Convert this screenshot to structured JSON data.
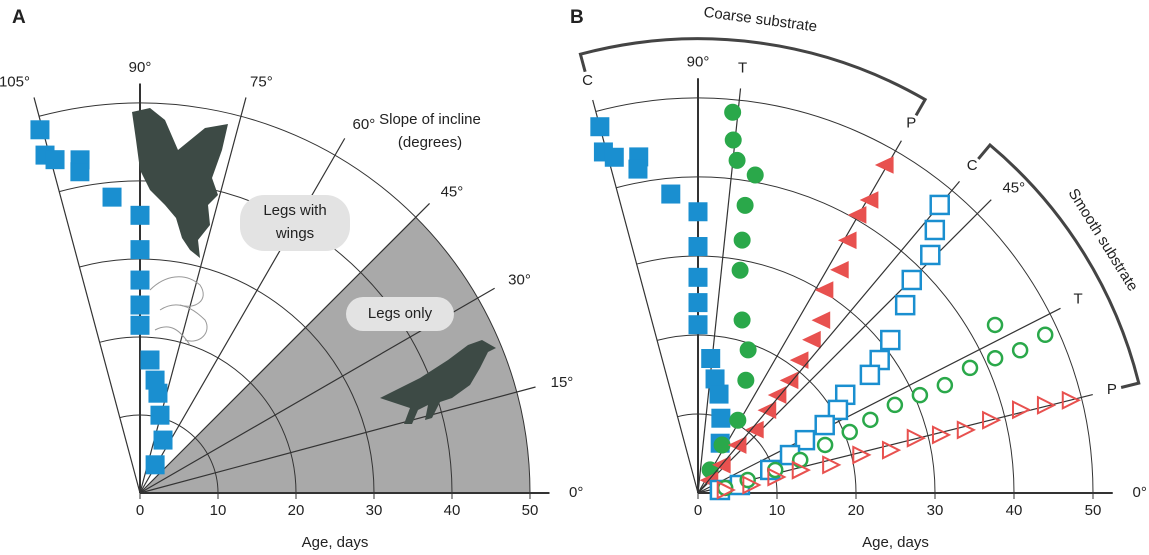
{
  "chart_data": [
    {
      "type": "polar",
      "title": "A",
      "x_label": "Age, days",
      "rlim": [
        0,
        50
      ],
      "rticks": [
        0,
        10,
        20,
        30,
        40,
        50
      ],
      "thetaticks": [
        {
          "value": 0,
          "label": "0°"
        },
        {
          "value": 15,
          "label": "15°"
        },
        {
          "value": 30,
          "label": "30°"
        },
        {
          "value": 45,
          "label": "45°"
        },
        {
          "value": 60,
          "label": "60°"
        },
        {
          "value": 75,
          "label": "75°"
        },
        {
          "value": 90,
          "label": "90°"
        },
        {
          "value": 105,
          "label": "105°"
        }
      ],
      "shaded_theta": [
        0,
        45
      ],
      "shade_color": "#a9a9a9",
      "annotations": {
        "slope_label": [
          "Slope of incline",
          "(degrees)"
        ],
        "legs_with_wings": [
          "Legs with",
          "wings"
        ],
        "legs_only": "Legs only"
      },
      "series": [
        {
          "marker": "square",
          "filled": true,
          "color": "#1a8fd0",
          "x": [
            48.3,
            45.0,
            44.1,
            43.4,
            41.9,
            38.1,
            35.6,
            31.2,
            27.3,
            24.1,
            21.5,
            17.1,
            14.6,
            13.0,
            10.3,
            7.4,
            4.1
          ],
          "values": [
            105.4,
            105.7,
            104.3,
            100.2,
            100.6,
            95.4,
            90,
            90,
            90,
            90,
            90,
            85.7,
            82.4,
            79.8,
            75.6,
            66.5,
            61.8
          ]
        }
      ]
    },
    {
      "type": "polar",
      "title": "B",
      "x_label": "Age, days",
      "rlim": [
        0,
        50
      ],
      "rticks": [
        0,
        10,
        20,
        30,
        40,
        50
      ],
      "thetaticks": [
        {
          "value": 0,
          "label": "0°"
        },
        {
          "value": 45,
          "label": "45°"
        },
        {
          "value": 90,
          "label": "90°"
        }
      ],
      "groups": [
        {
          "name": "Coarse substrate",
          "series": [
            {
              "name": "C",
              "angle": 105,
              "marker": "square",
              "filled": true,
              "color": "#1a8fd0",
              "x": [
                48.0,
                44.8,
                43.8,
                43.2,
                41.7,
                38.0,
                35.6,
                31.2,
                27.3,
                24.1,
                21.3,
                17.1,
                14.6,
                12.8,
                9.9,
                6.9
              ],
              "values": [
                105.0,
                105.5,
                104.0,
                100.0,
                100.5,
                95.2,
                90,
                90,
                90,
                90,
                90,
                84.6,
                81.5,
                78.0,
                73.0,
                66.0
              ]
            },
            {
              "name": "T",
              "angle": 84,
              "marker": "circle",
              "filled": true,
              "color": "#2aa84a",
              "x": [
                48.4,
                44.9,
                42.4,
                40.9,
                36.9,
                32.5,
                28.7,
                22.6,
                19.2,
                15.5,
                10.5,
                6.8,
                3.3
              ],
              "values": [
                84.8,
                84.3,
                83.3,
                79.8,
                80.7,
                80.1,
                79.3,
                75.7,
                70.7,
                67.0,
                61.3,
                63.4,
                62.4
              ]
            },
            {
              "name": "P",
              "angle": 60,
              "marker": "triangle-left",
              "filled": true,
              "color": "#e8514f",
              "x": [
                47.8,
                43.0,
                40.6,
                37.2,
                33.5,
                30.3,
                26.9,
                24.2,
                21.2,
                18.4,
                16.0,
                13.7,
                10.8,
                7.9,
                4.7,
                2.2
              ],
              "values": [
                60.3,
                59.6,
                60.1,
                59.3,
                57.5,
                58.0,
                54.4,
                53.3,
                52.5,
                50.8,
                50.8,
                49.9,
                47.9,
                50.2,
                49.4,
                47.3
              ]
            }
          ]
        },
        {
          "name": "Smooth substrate",
          "series": [
            {
              "name": "C",
              "angle": 50,
              "marker": "square",
              "filled": false,
              "color": "#1a8fd0",
              "x": [
                47.6,
                44.8,
                42.1,
                38.2,
                35.4,
                31.1,
                28.5,
                26.4,
                22.4,
                20.6,
                18.2,
                15.1,
                12.6,
                9.6,
                5.4,
                2.8
              ],
              "values": [
                50.0,
                48.0,
                45.7,
                44.9,
                42.2,
                38.5,
                36.2,
                34.5,
                33.7,
                30.7,
                28.2,
                26.3,
                22.4,
                17.7,
                10.8,
                7.8
              ]
            },
            {
              "name": "T",
              "angle": 27,
              "marker": "circle",
              "filled": false,
              "color": "#2aa84a",
              "x": [
                48.3,
                43.2,
                44.6,
                41.3,
                37.9,
                34.1,
                30.7,
                27.3,
                23.7,
                20.7,
                17.2,
                13.6,
                10.2,
                6.5,
                3.5
              ],
              "values": [
                24.5,
                29.5,
                23.9,
                24.4,
                24.7,
                23.6,
                23.8,
                24.1,
                23.0,
                21.9,
                20.7,
                17.9,
                16.6,
                14.6,
                10.5
              ]
            },
            {
              "name": "P",
              "angle": 14,
              "marker": "triangle-right",
              "filled": false,
              "color": "#e8514f",
              "x": [
                48.5,
                45.3,
                42.1,
                38.1,
                34.7,
                31.5,
                28.3,
                24.9,
                21.1,
                17.1,
                13.2,
                10.0,
                6.7,
                3.4
              ],
              "values": [
                14.0,
                14.2,
                14.5,
                14.0,
                13.3,
                13.5,
                14.2,
                12.6,
                13.2,
                12.0,
                12.7,
                11.7,
                8.7,
                6.3
              ]
            }
          ]
        }
      ]
    }
  ]
}
